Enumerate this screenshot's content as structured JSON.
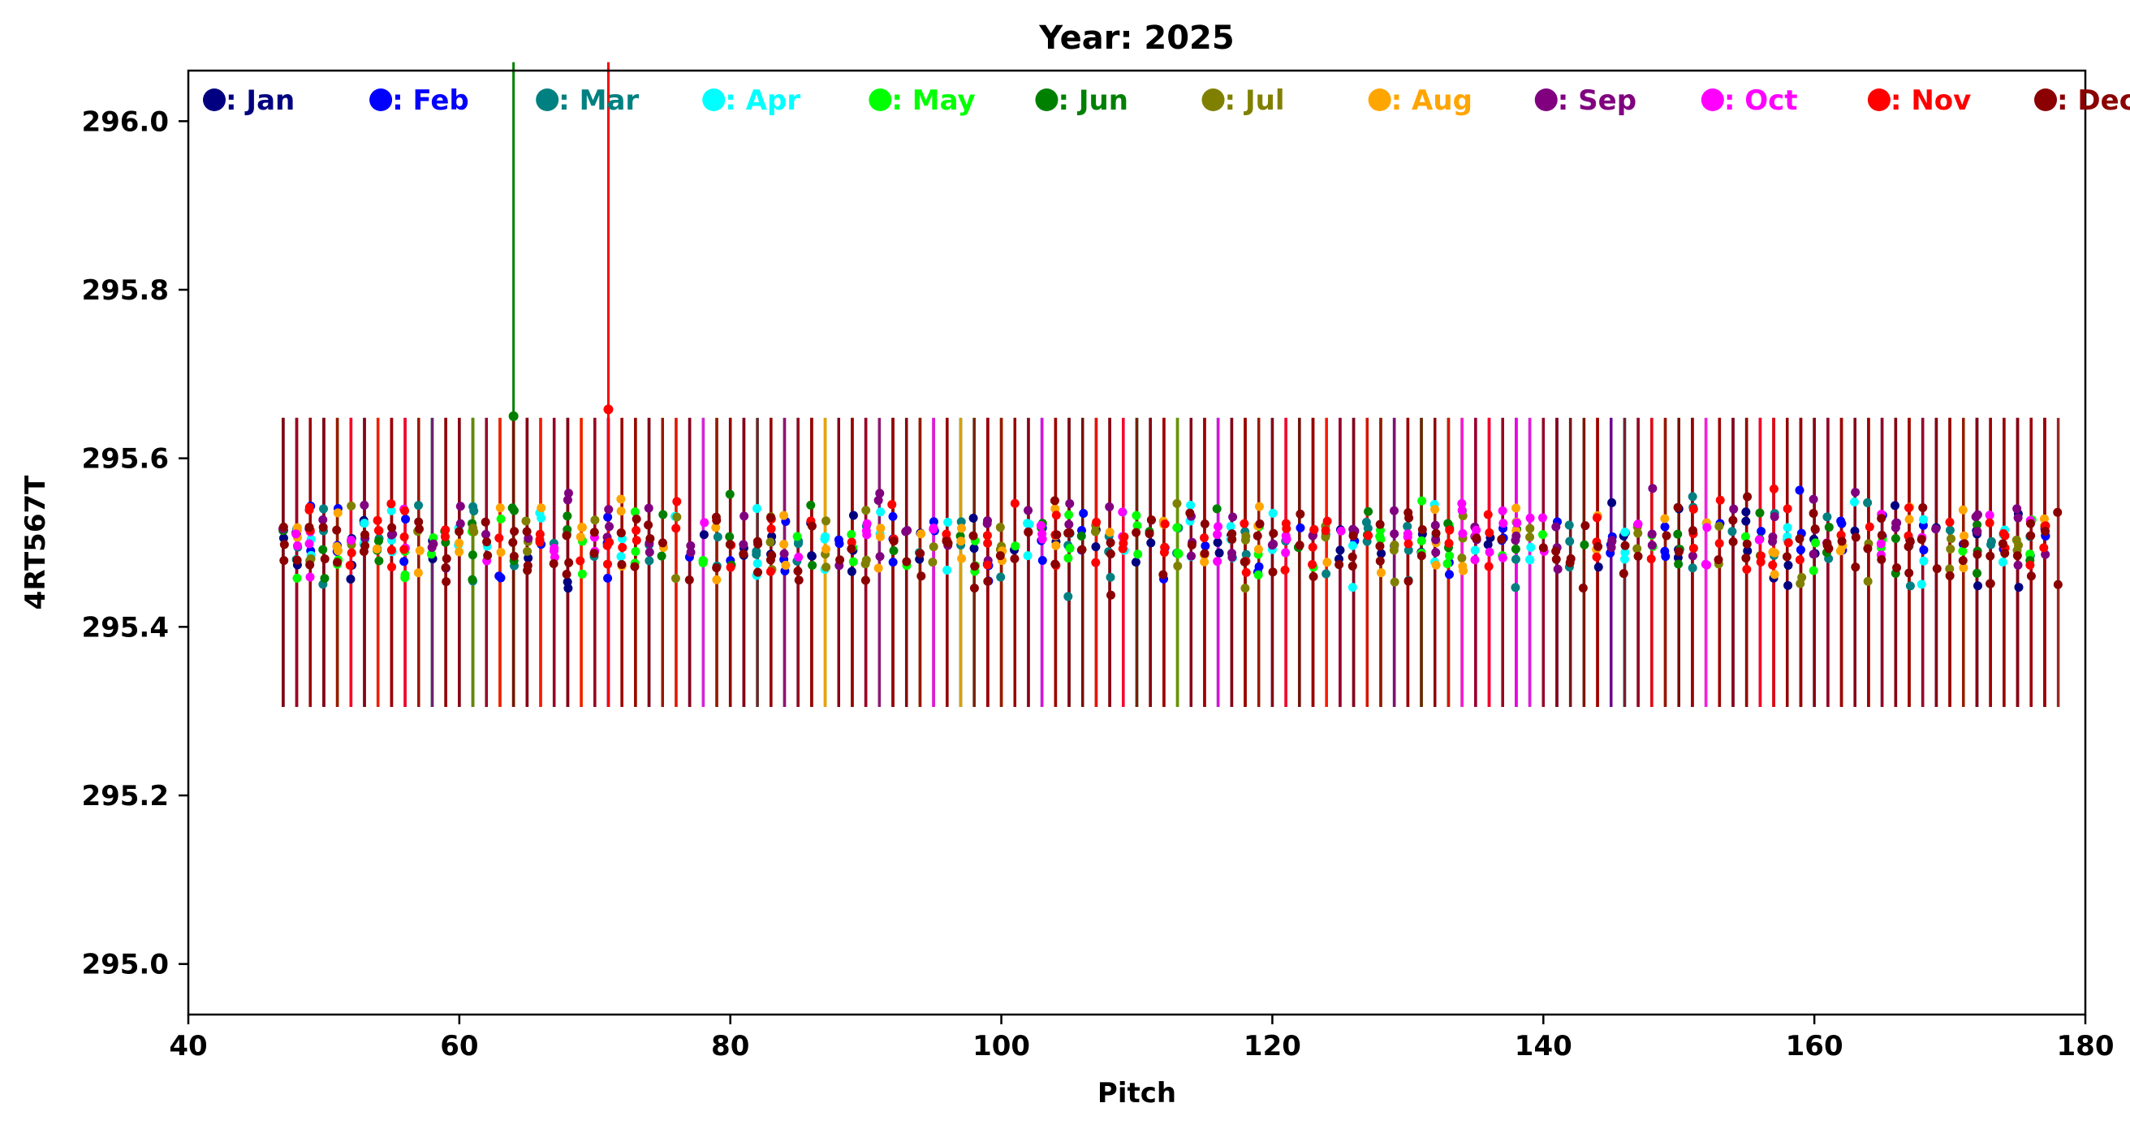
{
  "chart_data": {
    "type": "scatter",
    "title": "Year: 2025",
    "xlabel": "Pitch",
    "ylabel": "4RT567T",
    "xlim": [
      40,
      180
    ],
    "ylim": [
      294.94,
      296.06
    ],
    "xticks": [
      40,
      60,
      80,
      100,
      120,
      140,
      160,
      180
    ],
    "yticks": [
      295.0,
      295.2,
      295.4,
      295.6,
      295.8,
      296.0
    ],
    "ytick_labels": [
      "295.0",
      "295.2",
      "295.4",
      "295.6",
      "295.8",
      "296.0"
    ],
    "legend_placement": "top",
    "grid": false,
    "error_bar_range": [
      295.305,
      295.648
    ],
    "pitch_range": [
      47,
      178
    ],
    "series": [
      {
        "name": ": Jan",
        "color": "#000080",
        "pitches": [
          47,
          48,
          52,
          53,
          58,
          65,
          68,
          78,
          81,
          83,
          86,
          89,
          94,
          98,
          101,
          104,
          107,
          110,
          111,
          116,
          117,
          125,
          128,
          131,
          136,
          144,
          145,
          146,
          150,
          155,
          157,
          158,
          160,
          163,
          166,
          169,
          172,
          175
        ],
        "mean": 295.495
      },
      {
        "name": ": Feb",
        "color": "#0000ff",
        "pitches": [
          49,
          51,
          56,
          59,
          63,
          66,
          71,
          77,
          80,
          84,
          88,
          92,
          95,
          99,
          103,
          106,
          112,
          115,
          119,
          122,
          126,
          129,
          133,
          137,
          141,
          145,
          149,
          153,
          156,
          159,
          162,
          165,
          168,
          171,
          174,
          177
        ],
        "mean": 295.5
      },
      {
        "name": ": Mar",
        "color": "#008080",
        "pitches": [
          48,
          50,
          54,
          57,
          61,
          64,
          67,
          70,
          74,
          79,
          82,
          85,
          90,
          94,
          97,
          100,
          105,
          108,
          113,
          118,
          121,
          124,
          127,
          130,
          134,
          138,
          142,
          147,
          151,
          154,
          157,
          161,
          164,
          167,
          170,
          173,
          176
        ],
        "mean": 295.5
      },
      {
        "name": ": Apr",
        "color": "#00ffff",
        "pitches": [
          49,
          53,
          55,
          60,
          62,
          66,
          72,
          76,
          82,
          87,
          91,
          96,
          102,
          109,
          114,
          117,
          120,
          126,
          132,
          135,
          139,
          146,
          152,
          158,
          163,
          168,
          174
        ],
        "mean": 295.505
      },
      {
        "name": ": May",
        "color": "#00ff00",
        "pitches": [
          48,
          51,
          56,
          58,
          61,
          63,
          69,
          73,
          78,
          85,
          89,
          93,
          98,
          101,
          105,
          110,
          113,
          119,
          123,
          128,
          131,
          133,
          137,
          140,
          148,
          155,
          160,
          165,
          171,
          176
        ],
        "mean": 295.495
      },
      {
        "name": ": Jun",
        "color": "#008000",
        "pitches": [
          47,
          50,
          54,
          59,
          61,
          64,
          68,
          75,
          80,
          86,
          92,
          97,
          103,
          106,
          111,
          116,
          122,
          127,
          133,
          138,
          143,
          150,
          156,
          161,
          166,
          172,
          176
        ],
        "mean": 295.505,
        "outlier": {
          "pitch": 64,
          "value": 295.65,
          "top": 296.07
        }
      },
      {
        "name": ": Jul",
        "color": "#808000",
        "pitches": [
          49,
          52,
          57,
          61,
          65,
          70,
          76,
          83,
          87,
          90,
          95,
          100,
          107,
          113,
          118,
          124,
          129,
          134,
          139,
          147,
          153,
          159,
          164,
          170,
          175
        ],
        "mean": 295.5
      },
      {
        "name": ": Aug",
        "color": "#ffa500",
        "pitches": [
          48,
          51,
          54,
          57,
          60,
          63,
          66,
          69,
          72,
          75,
          79,
          84,
          87,
          91,
          94,
          97,
          100,
          104,
          108,
          112,
          115,
          119,
          124,
          128,
          132,
          134,
          138,
          144,
          149,
          152,
          157,
          162,
          167,
          171,
          177
        ],
        "mean": 295.505
      },
      {
        "name": ": Sep",
        "color": "#800080",
        "pitches": [
          47,
          50,
          53,
          55,
          58,
          60,
          62,
          65,
          68,
          71,
          74,
          77,
          81,
          84,
          88,
          91,
          93,
          96,
          99,
          102,
          105,
          108,
          111,
          114,
          117,
          120,
          123,
          126,
          129,
          132,
          135,
          138,
          141,
          145,
          148,
          151,
          154,
          157,
          160,
          163,
          166,
          169,
          172,
          175,
          177
        ],
        "mean": 295.51
      },
      {
        "name": ": Oct",
        "color": "#ff00ff",
        "pitches": [
          48,
          49,
          52,
          56,
          62,
          67,
          70,
          78,
          85,
          90,
          95,
          103,
          109,
          116,
          121,
          125,
          130,
          134,
          135,
          136,
          137,
          138,
          139,
          140,
          147,
          152,
          156,
          161,
          165,
          168,
          173,
          176
        ],
        "mean": 295.51
      },
      {
        "name": ": Nov",
        "color": "#ff0000",
        "pitches": [
          49,
          52,
          54,
          55,
          56,
          59,
          63,
          66,
          69,
          71,
          72,
          73,
          76,
          80,
          83,
          86,
          89,
          92,
          96,
          99,
          101,
          104,
          107,
          109,
          112,
          115,
          118,
          121,
          123,
          124,
          127,
          130,
          133,
          136,
          144,
          148,
          151,
          153,
          155,
          156,
          157,
          158,
          159,
          162,
          164,
          167,
          170,
          173,
          174,
          176,
          177
        ],
        "mean": 295.505,
        "outlier": {
          "pitch": 71,
          "value": 295.658,
          "top": 296.07
        }
      },
      {
        "name": ": Dec",
        "color": "#8b0000",
        "pitches": [
          47,
          48,
          49,
          50,
          51,
          53,
          55,
          57,
          59,
          60,
          62,
          64,
          65,
          67,
          68,
          70,
          72,
          73,
          74,
          75,
          77,
          79,
          80,
          81,
          82,
          83,
          85,
          86,
          88,
          89,
          90,
          92,
          93,
          94,
          96,
          98,
          99,
          100,
          101,
          102,
          104,
          105,
          106,
          108,
          110,
          111,
          112,
          114,
          115,
          117,
          118,
          119,
          120,
          122,
          123,
          125,
          126,
          128,
          130,
          131,
          132,
          135,
          137,
          140,
          141,
          142,
          143,
          144,
          146,
          147,
          149,
          150,
          151,
          153,
          154,
          155,
          158,
          159,
          160,
          161,
          162,
          163,
          164,
          165,
          166,
          167,
          168,
          169,
          170,
          171,
          172,
          173,
          174,
          175,
          176,
          177,
          178
        ],
        "mean": 295.495
      }
    ]
  }
}
